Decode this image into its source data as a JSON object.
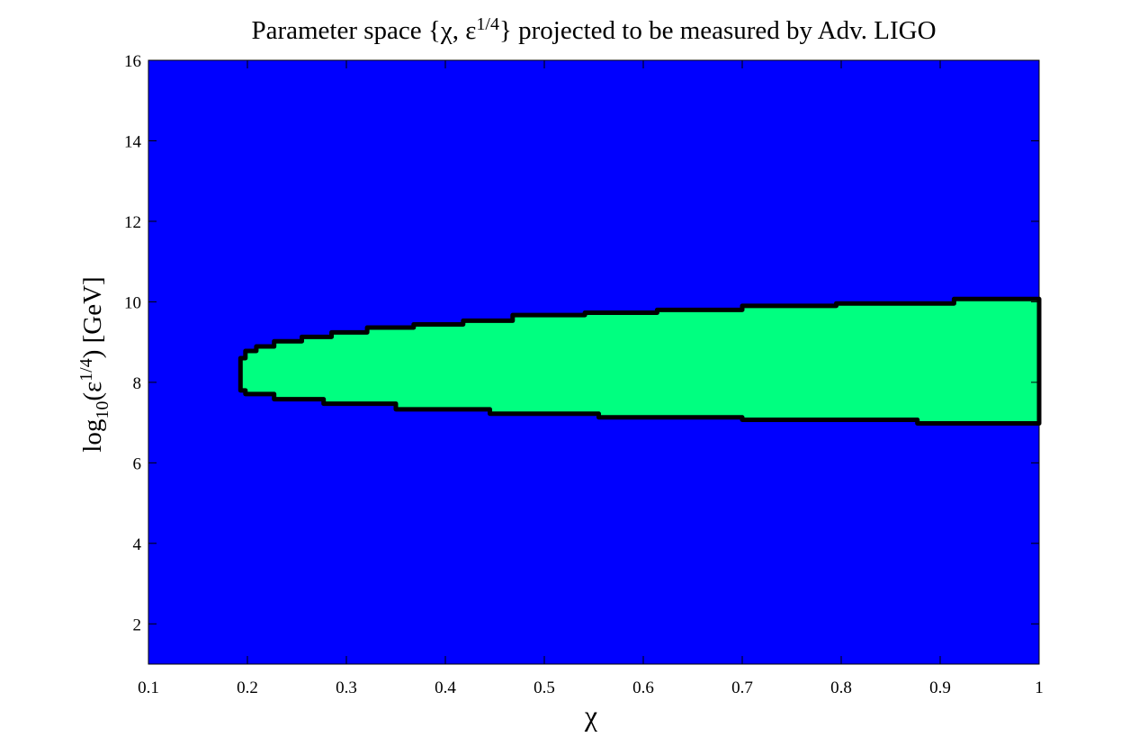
{
  "chart_data": {
    "type": "region",
    "title_parts": [
      "Parameter space {χ, ε",
      "1/4",
      "} projected to be measured by Adv. LIGO"
    ],
    "xlabel": "χ",
    "ylabel_parts": [
      "log",
      "10",
      "(ε",
      "1/4",
      ") [GeV]"
    ],
    "xlim": [
      0.1,
      1
    ],
    "ylim": [
      1,
      16
    ],
    "xticks": [
      0.1,
      0.2,
      0.3,
      0.4,
      0.5,
      0.6,
      0.7,
      0.8,
      0.9,
      1
    ],
    "yticks": [
      2,
      4,
      6,
      8,
      10,
      12,
      14,
      16
    ],
    "background_color": "#0000ff",
    "region": {
      "color": "#00ff80",
      "edge_color": "#000000",
      "x": [
        0.193,
        0.198,
        0.198,
        0.209,
        0.209,
        0.227,
        0.227,
        0.255,
        0.255,
        0.285,
        0.285,
        0.321,
        0.321,
        0.368,
        0.368,
        0.418,
        0.418,
        0.468,
        0.468,
        0.541,
        0.541,
        0.614,
        0.614,
        0.7,
        0.7,
        0.795,
        0.795,
        0.914,
        0.914,
        1,
        1,
        0.877,
        0.877,
        0.7,
        0.7,
        0.555,
        0.555,
        0.445,
        0.445,
        0.35,
        0.35,
        0.277,
        0.277,
        0.227,
        0.227,
        0.198,
        0.198,
        0.193
      ],
      "y": [
        8.6,
        8.6,
        8.78,
        8.78,
        8.89,
        8.89,
        9.02,
        9.02,
        9.13,
        9.13,
        9.24,
        9.24,
        9.36,
        9.36,
        9.44,
        9.44,
        9.53,
        9.53,
        9.67,
        9.67,
        9.73,
        9.73,
        9.8,
        9.8,
        9.9,
        9.9,
        9.96,
        9.96,
        10.07,
        10.07,
        6.98,
        6.98,
        7.07,
        7.07,
        7.13,
        7.13,
        7.22,
        7.22,
        7.33,
        7.33,
        7.47,
        7.47,
        7.58,
        7.58,
        7.71,
        7.71,
        7.8,
        7.8
      ]
    }
  }
}
